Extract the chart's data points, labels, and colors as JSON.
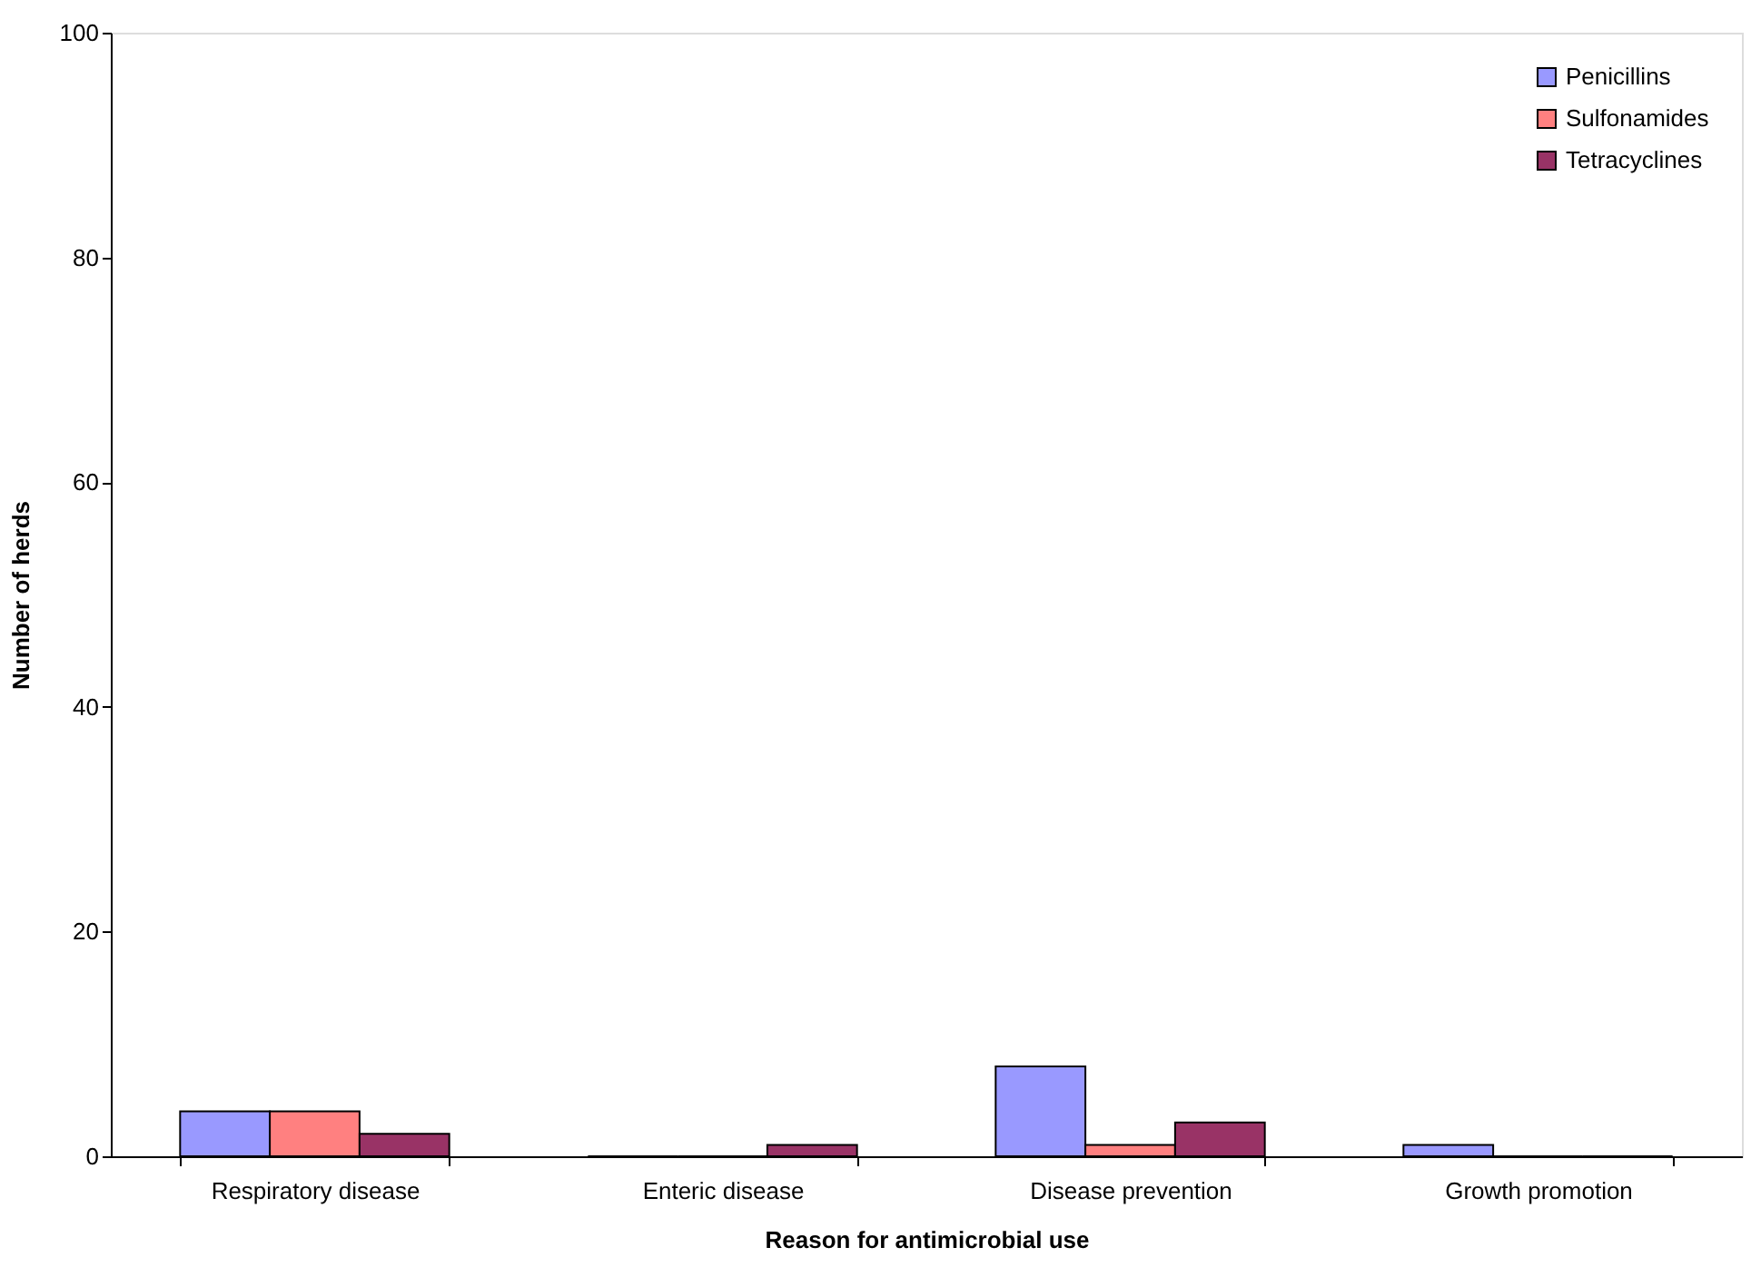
{
  "chart_data": {
    "type": "bar",
    "xlabel": "Reason for antimicrobial use",
    "ylabel": "Number of herds",
    "categories": [
      "Respiratory disease",
      "Enteric disease",
      "Disease prevention",
      "Growth promotion"
    ],
    "series": [
      {
        "name": "Penicillins",
        "color": "#9999ff",
        "values": [
          4,
          0,
          8,
          1
        ]
      },
      {
        "name": "Sulfonamides",
        "color": "#ff8080",
        "values": [
          4,
          0,
          1,
          0
        ]
      },
      {
        "name": "Tetracyclines",
        "color": "#993366",
        "values": [
          2,
          1,
          3,
          0
        ]
      }
    ],
    "ylim": [
      0,
      100
    ],
    "yticks": [
      0,
      20,
      40,
      60,
      80,
      100
    ],
    "grid": false,
    "legend": "top right"
  }
}
